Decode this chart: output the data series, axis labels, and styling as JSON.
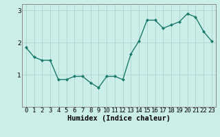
{
  "x": [
    0,
    1,
    2,
    3,
    4,
    5,
    6,
    7,
    8,
    9,
    10,
    11,
    12,
    13,
    14,
    15,
    16,
    17,
    18,
    19,
    20,
    21,
    22,
    23
  ],
  "y": [
    1.85,
    1.55,
    1.45,
    1.45,
    0.85,
    0.85,
    0.95,
    0.95,
    0.75,
    0.6,
    0.95,
    0.95,
    0.85,
    1.65,
    2.05,
    2.7,
    2.7,
    2.45,
    2.55,
    2.65,
    2.9,
    2.8,
    2.35,
    2.05
  ],
  "line_color": "#1a7a6e",
  "marker": "D",
  "marker_size": 2,
  "bg_color": "#cceee8",
  "grid_color": "#aad4cf",
  "xlabel": "Humidex (Indice chaleur)",
  "xlim": [
    -0.5,
    23.5
  ],
  "ylim": [
    0,
    3.2
  ],
  "yticks": [
    1,
    2,
    3
  ],
  "xtick_labels": [
    "0",
    "1",
    "2",
    "3",
    "4",
    "5",
    "6",
    "7",
    "8",
    "9",
    "10",
    "11",
    "12",
    "13",
    "14",
    "15",
    "16",
    "17",
    "18",
    "19",
    "20",
    "21",
    "22",
    "23"
  ],
  "xlabel_fontsize": 7.5,
  "tick_fontsize": 6.5,
  "linewidth": 1.0
}
